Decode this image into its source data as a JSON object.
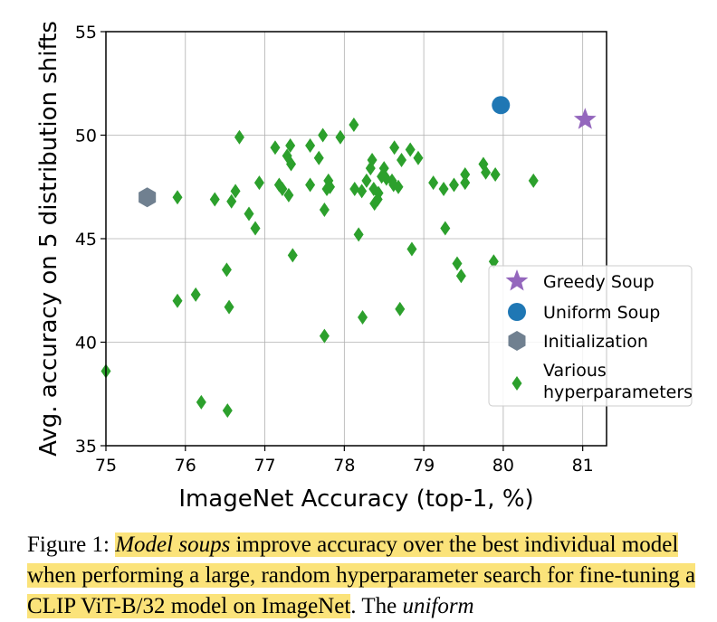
{
  "chart_data": {
    "type": "scatter",
    "xlabel": "ImageNet Accuracy (top-1, %)",
    "ylabel": "Avg. accuracy on 5 distribution shifts",
    "xlim": [
      75,
      81.3
    ],
    "ylim": [
      35,
      55
    ],
    "xticks": [
      "75",
      "76",
      "77",
      "78",
      "79",
      "80",
      "81"
    ],
    "yticks": [
      "35",
      "40",
      "45",
      "50",
      "55"
    ],
    "grid": true,
    "legend_position": "lower-right",
    "series": [
      {
        "name": "Greedy Soup",
        "marker": "star",
        "color": "#9467bd",
        "points": [
          {
            "x": 81.03,
            "y": 50.75
          }
        ]
      },
      {
        "name": "Uniform Soup",
        "marker": "circle",
        "color": "#1f77b4",
        "points": [
          {
            "x": 79.97,
            "y": 51.45
          }
        ]
      },
      {
        "name": "Initialization",
        "marker": "hexagon",
        "color": "#708090",
        "points": [
          {
            "x": 75.52,
            "y": 47.0
          }
        ]
      },
      {
        "name": "Various hyperparameters",
        "marker": "diamond",
        "color": "#2ca02c",
        "points": [
          {
            "x": 75.0,
            "y": 38.6
          },
          {
            "x": 75.9,
            "y": 47.0
          },
          {
            "x": 75.9,
            "y": 42.0
          },
          {
            "x": 76.13,
            "y": 42.3
          },
          {
            "x": 76.2,
            "y": 37.1
          },
          {
            "x": 76.37,
            "y": 46.9
          },
          {
            "x": 76.52,
            "y": 43.5
          },
          {
            "x": 76.53,
            "y": 36.7
          },
          {
            "x": 76.55,
            "y": 41.7
          },
          {
            "x": 76.58,
            "y": 46.8
          },
          {
            "x": 76.63,
            "y": 47.3
          },
          {
            "x": 76.68,
            "y": 49.9
          },
          {
            "x": 76.8,
            "y": 46.2
          },
          {
            "x": 76.88,
            "y": 45.5
          },
          {
            "x": 76.93,
            "y": 47.7
          },
          {
            "x": 77.13,
            "y": 49.4
          },
          {
            "x": 77.18,
            "y": 47.6
          },
          {
            "x": 77.22,
            "y": 47.4
          },
          {
            "x": 77.28,
            "y": 49.0
          },
          {
            "x": 77.3,
            "y": 47.1
          },
          {
            "x": 77.32,
            "y": 49.5
          },
          {
            "x": 77.33,
            "y": 48.6
          },
          {
            "x": 77.35,
            "y": 44.2
          },
          {
            "x": 77.57,
            "y": 47.6
          },
          {
            "x": 77.57,
            "y": 49.5
          },
          {
            "x": 77.68,
            "y": 48.9
          },
          {
            "x": 77.73,
            "y": 50.0
          },
          {
            "x": 77.75,
            "y": 46.4
          },
          {
            "x": 77.75,
            "y": 40.3
          },
          {
            "x": 77.78,
            "y": 47.4
          },
          {
            "x": 77.8,
            "y": 47.8
          },
          {
            "x": 77.82,
            "y": 47.5
          },
          {
            "x": 77.95,
            "y": 49.9
          },
          {
            "x": 78.12,
            "y": 50.5
          },
          {
            "x": 78.13,
            "y": 47.4
          },
          {
            "x": 78.18,
            "y": 45.2
          },
          {
            "x": 78.22,
            "y": 47.3
          },
          {
            "x": 78.23,
            "y": 41.2
          },
          {
            "x": 78.28,
            "y": 47.8
          },
          {
            "x": 78.33,
            "y": 48.4
          },
          {
            "x": 78.35,
            "y": 48.8
          },
          {
            "x": 78.37,
            "y": 47.4
          },
          {
            "x": 78.38,
            "y": 46.7
          },
          {
            "x": 78.42,
            "y": 46.9
          },
          {
            "x": 78.43,
            "y": 47.2
          },
          {
            "x": 78.47,
            "y": 48.0
          },
          {
            "x": 78.5,
            "y": 48.4
          },
          {
            "x": 78.53,
            "y": 47.9
          },
          {
            "x": 78.6,
            "y": 47.8
          },
          {
            "x": 78.62,
            "y": 47.6
          },
          {
            "x": 78.63,
            "y": 49.4
          },
          {
            "x": 78.68,
            "y": 47.5
          },
          {
            "x": 78.7,
            "y": 41.6
          },
          {
            "x": 78.72,
            "y": 48.8
          },
          {
            "x": 78.83,
            "y": 49.3
          },
          {
            "x": 78.85,
            "y": 44.5
          },
          {
            "x": 78.93,
            "y": 48.9
          },
          {
            "x": 79.12,
            "y": 47.7
          },
          {
            "x": 79.25,
            "y": 47.4
          },
          {
            "x": 79.27,
            "y": 45.5
          },
          {
            "x": 79.38,
            "y": 47.6
          },
          {
            "x": 79.42,
            "y": 43.8
          },
          {
            "x": 79.47,
            "y": 43.2
          },
          {
            "x": 79.52,
            "y": 48.1
          },
          {
            "x": 79.52,
            "y": 47.7
          },
          {
            "x": 79.75,
            "y": 48.6
          },
          {
            "x": 79.78,
            "y": 48.2
          },
          {
            "x": 79.88,
            "y": 43.9
          },
          {
            "x": 79.9,
            "y": 48.1
          },
          {
            "x": 80.38,
            "y": 47.8
          }
        ]
      }
    ],
    "legend_labels": [
      [
        "Greedy Soup"
      ],
      [
        "Uniform Soup"
      ],
      [
        "Initialization"
      ],
      [
        "Various",
        "hyperparameters"
      ]
    ]
  },
  "caption": {
    "label": "Figure 1: ",
    "italic_lead": "Model soups",
    "highlighted_text": " improve accuracy over the best individual model when performing a large, random hyperparameter search for fine-tuning a CLIP ViT-B/32 model on ImageNet",
    "period": ".",
    "trailing_text": " The ",
    "trailing_italic": "uniform"
  }
}
